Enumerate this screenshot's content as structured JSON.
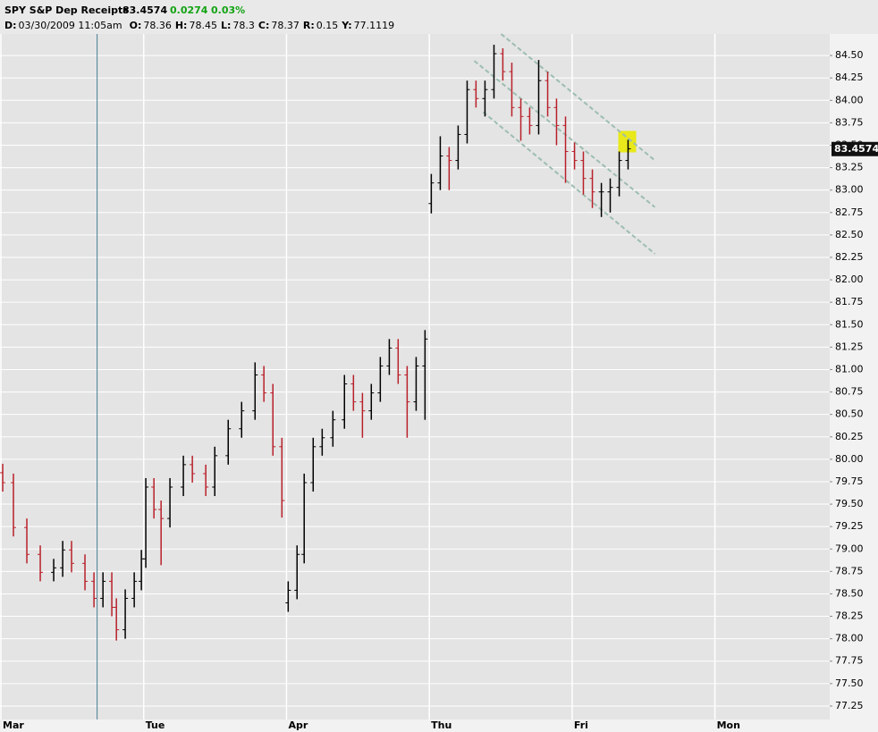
{
  "chart_data": {
    "type": "ohlc",
    "title": "SPY S&P Dep Receipts",
    "last_price": 83.4574,
    "change": 0.0274,
    "change_pct": "0.03%",
    "info": [
      {
        "label": "D:",
        "value": "03/30/2009  11:05am"
      },
      {
        "label": "O:",
        "value": 78.36
      },
      {
        "label": "H:",
        "value": 78.45
      },
      {
        "label": "L:",
        "value": 78.3
      },
      {
        "label": "C:",
        "value": 78.37
      },
      {
        "label": "R:",
        "value": 0.15
      },
      {
        "label": "Y:",
        "value": 77.1119
      }
    ],
    "up_color": "#000000",
    "down_color": "#b8202a",
    "xlim": [
      0,
      5.81
    ],
    "xticks": [
      {
        "value": 0,
        "label": "Mar"
      },
      {
        "value": 1,
        "label": "Tue"
      },
      {
        "value": 2,
        "label": "Apr"
      },
      {
        "value": 3,
        "label": "Thu"
      },
      {
        "value": 4,
        "label": "Fri"
      },
      {
        "value": 5,
        "label": "Mon"
      }
    ],
    "ylim": [
      77.1,
      84.74
    ],
    "yticks": [
      {
        "value": 77.25,
        "label": "77.25"
      },
      {
        "value": 77.5,
        "label": "77.50"
      },
      {
        "value": 77.75,
        "label": "77.75"
      },
      {
        "value": 78,
        "label": "78.00"
      },
      {
        "value": 78.25,
        "label": "78.25"
      },
      {
        "value": 78.5,
        "label": "78.50"
      },
      {
        "value": 78.75,
        "label": "78.75"
      },
      {
        "value": 79,
        "label": "79.00"
      },
      {
        "value": 79.25,
        "label": "79.25"
      },
      {
        "value": 79.5,
        "label": "79.50"
      },
      {
        "value": 79.75,
        "label": "79.75"
      },
      {
        "value": 80,
        "label": "80.00"
      },
      {
        "value": 80.25,
        "label": "80.25"
      },
      {
        "value": 80.5,
        "label": "80.50"
      },
      {
        "value": 80.75,
        "label": "80.75"
      },
      {
        "value": 81,
        "label": "81.00"
      },
      {
        "value": 81.25,
        "label": "81.25"
      },
      {
        "value": 81.5,
        "label": "81.50"
      },
      {
        "value": 81.75,
        "label": "81.75"
      },
      {
        "value": 82,
        "label": "82.00"
      },
      {
        "value": 82.25,
        "label": "82.25"
      },
      {
        "value": 82.5,
        "label": "82.50"
      },
      {
        "value": 82.75,
        "label": "82.75"
      },
      {
        "value": 83,
        "label": "83.00"
      },
      {
        "value": 83.25,
        "label": "83.25"
      },
      {
        "value": 83.5,
        "label": "83.50"
      },
      {
        "value": 83.75,
        "label": "83.75"
      },
      {
        "value": 84,
        "label": "84.00"
      },
      {
        "value": 84.25,
        "label": "84.25"
      },
      {
        "value": 84.5,
        "label": "84.50"
      }
    ],
    "grid": true,
    "cursor_x": 0.68,
    "cursor_color": "#4a7f96",
    "channel_color": "#9dbdb0",
    "channel": [
      {
        "x": [
          3.509,
          4.586
        ],
        "y": [
          84.74,
          83.33
        ]
      },
      {
        "x": [
          3.321,
          4.586
        ],
        "y": [
          84.44,
          82.81
        ]
      },
      {
        "x": [
          3.383,
          4.586
        ],
        "y": [
          83.87,
          82.29
        ]
      }
    ],
    "highlight": {
      "x": 4.392,
      "y": 83.54,
      "color": "#e8e81a"
    },
    "x": [
      0.019,
      0.094,
      0.188,
      0.282,
      0.376,
      0.439,
      0.501,
      0.595,
      0.658,
      0.721,
      0.783,
      0.815,
      0.877,
      0.94,
      0.99,
      1.021,
      1.078,
      1.128,
      1.19,
      1.284,
      1.347,
      1.441,
      1.504,
      1.598,
      1.692,
      1.786,
      1.848,
      1.911,
      1.974,
      2.018,
      2.08,
      2.13,
      2.193,
      2.256,
      2.331,
      2.412,
      2.475,
      2.538,
      2.6,
      2.663,
      2.726,
      2.788,
      2.851,
      2.914,
      2.976,
      3.02,
      3.083,
      3.145,
      3.208,
      3.271,
      3.333,
      3.396,
      3.459,
      3.521,
      3.584,
      3.647,
      3.709,
      3.772,
      3.835,
      3.897,
      3.96,
      4.023,
      4.085,
      4.148,
      4.211,
      4.273,
      4.336,
      4.398
    ],
    "open": [
      79.85,
      79.74,
      79.24,
      78.94,
      78.74,
      78.79,
      78.99,
      78.84,
      78.64,
      78.45,
      78.64,
      78.35,
      78.1,
      78.45,
      78.64,
      78.89,
      79.69,
      79.44,
      79.34,
      79.69,
      79.94,
      79.84,
      79.69,
      80.04,
      80.34,
      80.54,
      80.94,
      80.74,
      80.14,
      78.4,
      78.54,
      78.94,
      79.74,
      80.14,
      80.24,
      80.44,
      80.84,
      80.64,
      80.54,
      80.74,
      81.04,
      81.24,
      80.94,
      80.64,
      81.04,
      82.85,
      83.08,
      83.38,
      83.33,
      83.62,
      84.12,
      84.02,
      84.12,
      84.52,
      84.32,
      83.92,
      83.82,
      83.72,
      84.22,
      83.92,
      83.72,
      83.43,
      83.33,
      83.13,
      82.98,
      82.98,
      83.03,
      83.33
    ],
    "high": [
      79.95,
      79.84,
      79.34,
      79.04,
      78.89,
      79.09,
      79.09,
      78.94,
      78.74,
      78.74,
      78.74,
      78.45,
      78.55,
      78.74,
      78.99,
      79.79,
      79.79,
      79.54,
      79.79,
      80.04,
      80.04,
      79.94,
      80.14,
      80.44,
      80.64,
      81.08,
      81.04,
      80.84,
      80.24,
      78.64,
      79.04,
      79.84,
      80.24,
      80.34,
      80.54,
      80.94,
      80.94,
      80.74,
      80.84,
      81.14,
      81.34,
      81.34,
      81.04,
      81.14,
      81.44,
      83.18,
      83.6,
      83.48,
      83.72,
      84.22,
      84.22,
      84.22,
      84.62,
      84.58,
      84.42,
      84.02,
      83.92,
      84.45,
      84.32,
      84.02,
      83.82,
      83.53,
      83.43,
      83.23,
      83.08,
      83.13,
      83.43,
      83.56
    ],
    "low": [
      79.64,
      79.14,
      78.84,
      78.64,
      78.64,
      78.69,
      78.74,
      78.54,
      78.35,
      78.35,
      78.25,
      77.98,
      78,
      78.35,
      78.54,
      78.79,
      79.34,
      78.82,
      79.24,
      79.59,
      79.74,
      79.59,
      79.59,
      79.94,
      80.24,
      80.44,
      80.64,
      80.04,
      79.35,
      78.3,
      78.44,
      78.84,
      79.64,
      80.04,
      80.14,
      80.34,
      80.54,
      80.24,
      80.44,
      80.64,
      80.94,
      80.84,
      80.24,
      80.54,
      80.44,
      82.74,
      83,
      83,
      83.23,
      83.52,
      83.92,
      83.82,
      84.02,
      84.22,
      83.82,
      83.55,
      83.62,
      83.62,
      83.82,
      83.5,
      83.08,
      83.23,
      82.95,
      82.8,
      82.7,
      82.75,
      82.93,
      83.23
    ],
    "close": [
      79.74,
      79.24,
      78.94,
      78.74,
      78.79,
      78.99,
      78.84,
      78.64,
      78.45,
      78.64,
      78.35,
      78.1,
      78.45,
      78.64,
      78.89,
      79.69,
      79.44,
      79.34,
      79.69,
      79.94,
      79.84,
      79.69,
      80.04,
      80.34,
      80.54,
      80.94,
      80.74,
      80.14,
      79.54,
      78.54,
      78.94,
      79.74,
      80.14,
      80.24,
      80.44,
      80.84,
      80.64,
      80.54,
      80.74,
      81.04,
      81.24,
      80.94,
      80.64,
      81.04,
      81.34,
      83.08,
      83.38,
      83.33,
      83.62,
      84.12,
      84.02,
      84.12,
      84.52,
      84.32,
      83.92,
      83.82,
      83.72,
      84.22,
      83.92,
      83.72,
      83.43,
      83.33,
      83.13,
      82.98,
      82.98,
      83.03,
      83.33,
      83.46
    ]
  }
}
